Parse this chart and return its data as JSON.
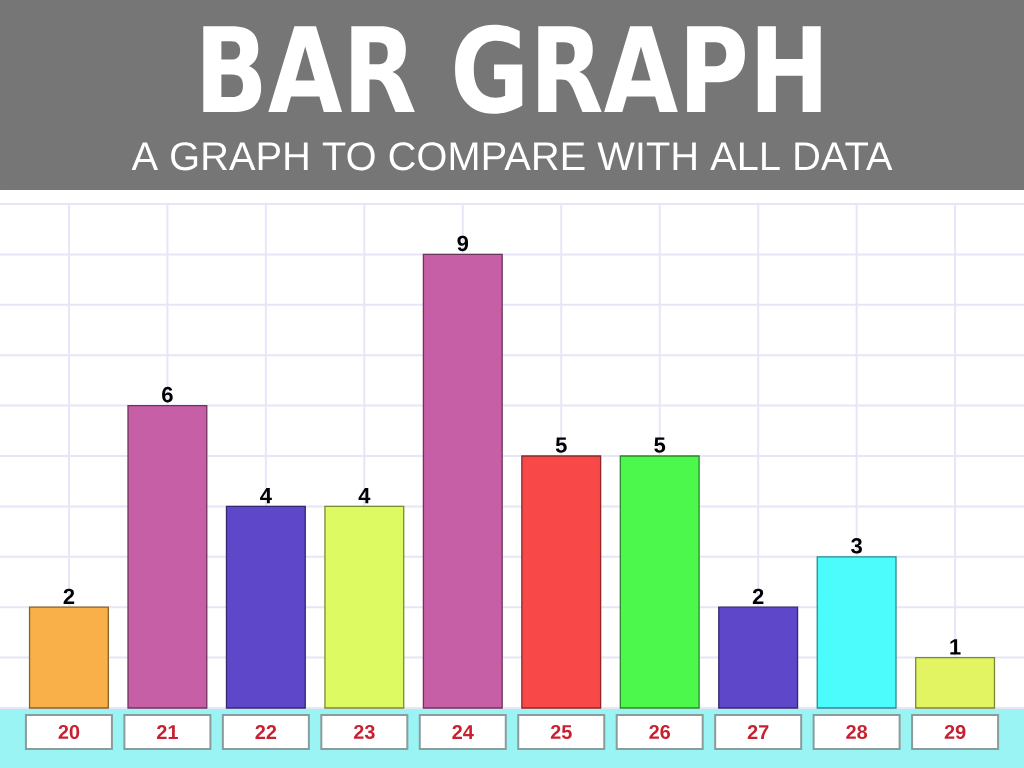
{
  "chart_data": {
    "type": "bar",
    "title": "BAR GRAPH",
    "subtitle": "A GRAPH TO COMPARE WITH ALL DATA",
    "categories": [
      "20",
      "21",
      "22",
      "23",
      "24",
      "25",
      "26",
      "27",
      "28",
      "29"
    ],
    "values": [
      2,
      6,
      4,
      4,
      9,
      5,
      5,
      2,
      3,
      1
    ],
    "colors": [
      "#f9b049",
      "#c65fa6",
      "#5e48c9",
      "#defa62",
      "#c65fa6",
      "#f84848",
      "#4cf84c",
      "#5e48c9",
      "#4cfcfc",
      "#e2f462"
    ],
    "ylim": [
      0,
      10
    ],
    "yticks": [
      {
        "value": 0,
        "label": null
      },
      {
        "value": 1,
        "label": null
      },
      {
        "value": 2,
        "label": null
      },
      {
        "value": 3,
        "label": null
      },
      {
        "value": 4,
        "label": null
      },
      {
        "value": 5,
        "label": null
      },
      {
        "value": 6,
        "label": null
      },
      {
        "value": 7,
        "label": null
      },
      {
        "value": 8,
        "label": null
      },
      {
        "value": 9,
        "label": null
      },
      {
        "value": 10,
        "label": null
      }
    ],
    "grid": true,
    "data_labels": true,
    "tick_labels": "x"
  }
}
